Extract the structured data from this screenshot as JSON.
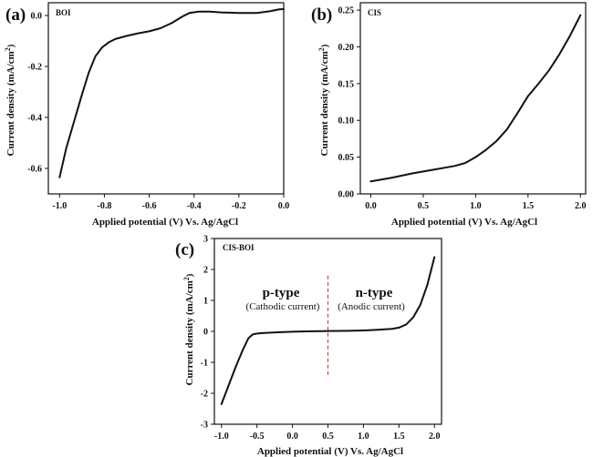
{
  "chart_data": [
    {
      "type": "line",
      "panel_letter": "(a)",
      "panel_tag": "BOI",
      "xlabel": "Applied potential (V) Vs. Ag/AgCl",
      "ylabel_main": "Current density (mA/cm",
      "ylabel_sup": "2",
      "ylabel_end": ")",
      "xlim": [
        -1.05,
        0.0
      ],
      "ylim": [
        -0.7,
        0.05
      ],
      "xticks": [
        -1.0,
        -0.8,
        -0.6,
        -0.4,
        -0.2,
        0.0
      ],
      "xtick_labels": [
        "-1.0",
        "-0.8",
        "-0.6",
        "-0.4",
        "-0.2",
        "0.0"
      ],
      "yticks": [
        0.0,
        -0.2,
        -0.4,
        -0.6
      ],
      "ytick_labels": [
        "0.0",
        "-0.2",
        "-0.4",
        "-0.6"
      ],
      "series": [
        {
          "x": [
            -1.0,
            -0.97,
            -0.93,
            -0.9,
            -0.87,
            -0.84,
            -0.81,
            -0.78,
            -0.75,
            -0.7,
            -0.65,
            -0.6,
            -0.55,
            -0.5,
            -0.45,
            -0.42,
            -0.38,
            -0.33,
            -0.28,
            -0.2,
            -0.12,
            -0.06,
            -0.02,
            0.0
          ],
          "y": [
            -0.635,
            -0.52,
            -0.4,
            -0.31,
            -0.225,
            -0.16,
            -0.125,
            -0.105,
            -0.092,
            -0.08,
            -0.07,
            -0.062,
            -0.05,
            -0.03,
            -0.003,
            0.01,
            0.015,
            0.015,
            0.012,
            0.01,
            0.01,
            0.017,
            0.024,
            0.025
          ]
        }
      ]
    },
    {
      "type": "line",
      "panel_letter": "(b)",
      "panel_tag": "CIS",
      "xlabel": "Applied potential (V) Vs. Ag/AgCl",
      "ylabel_main": "Current density (mA/cm",
      "ylabel_sup": "2",
      "ylabel_end": ")",
      "xlim": [
        -0.1,
        2.05
      ],
      "ylim": [
        0.0,
        0.26
      ],
      "xticks": [
        0.0,
        0.5,
        1.0,
        1.5,
        2.0
      ],
      "xtick_labels": [
        "0.0",
        "0.5",
        "1.0",
        "1.5",
        "2.0"
      ],
      "yticks": [
        0.0,
        0.05,
        0.1,
        0.15,
        0.2,
        0.25
      ],
      "ytick_labels": [
        "0.00",
        "0.05",
        "0.10",
        "0.15",
        "0.20",
        "0.25"
      ],
      "series": [
        {
          "x": [
            0.0,
            0.2,
            0.4,
            0.6,
            0.8,
            0.9,
            1.0,
            1.1,
            1.2,
            1.3,
            1.4,
            1.5,
            1.6,
            1.7,
            1.8,
            1.9,
            2.0
          ],
          "y": [
            0.017,
            0.022,
            0.028,
            0.033,
            0.038,
            0.042,
            0.05,
            0.06,
            0.072,
            0.088,
            0.11,
            0.133,
            0.15,
            0.168,
            0.19,
            0.215,
            0.243
          ]
        }
      ]
    },
    {
      "type": "line",
      "panel_letter": "(c)",
      "panel_tag": "CIS-BOI",
      "xlabel": "Applied potential (V) Vs. Ag/AgCl",
      "ylabel_main": "Current density (mA/cm",
      "ylabel_sup": "2",
      "ylabel_end": ")",
      "xlim": [
        -1.1,
        2.1
      ],
      "ylim": [
        -3,
        3
      ],
      "xticks": [
        -1.0,
        -0.5,
        0.0,
        0.5,
        1.0,
        1.5,
        2.0
      ],
      "xtick_labels": [
        "-1.0",
        "-0.5",
        "0.0",
        "0.5",
        "1.0",
        "1.5",
        "2.0"
      ],
      "yticks": [
        -3,
        -2,
        -1,
        0,
        1,
        2,
        3
      ],
      "ytick_labels": [
        "-3",
        "-2",
        "-1",
        "0",
        "1",
        "2",
        "3"
      ],
      "divider_x": 0.5,
      "annotations": {
        "left_title": "p-type",
        "left_sub": "(Cathodic current)",
        "right_title": "n-type",
        "right_sub": "(Anodic current)"
      },
      "series": [
        {
          "x": [
            -1.0,
            -0.9,
            -0.8,
            -0.7,
            -0.62,
            -0.56,
            -0.5,
            -0.4,
            -0.2,
            0.0,
            0.2,
            0.5,
            0.8,
            1.0,
            1.2,
            1.4,
            1.5,
            1.6,
            1.7,
            1.8,
            1.9,
            2.0
          ],
          "y": [
            -2.35,
            -1.75,
            -1.15,
            -0.6,
            -0.22,
            -0.1,
            -0.07,
            -0.05,
            -0.03,
            -0.01,
            0.0,
            0.01,
            0.02,
            0.03,
            0.05,
            0.08,
            0.12,
            0.22,
            0.45,
            0.85,
            1.5,
            2.4
          ]
        }
      ]
    }
  ]
}
